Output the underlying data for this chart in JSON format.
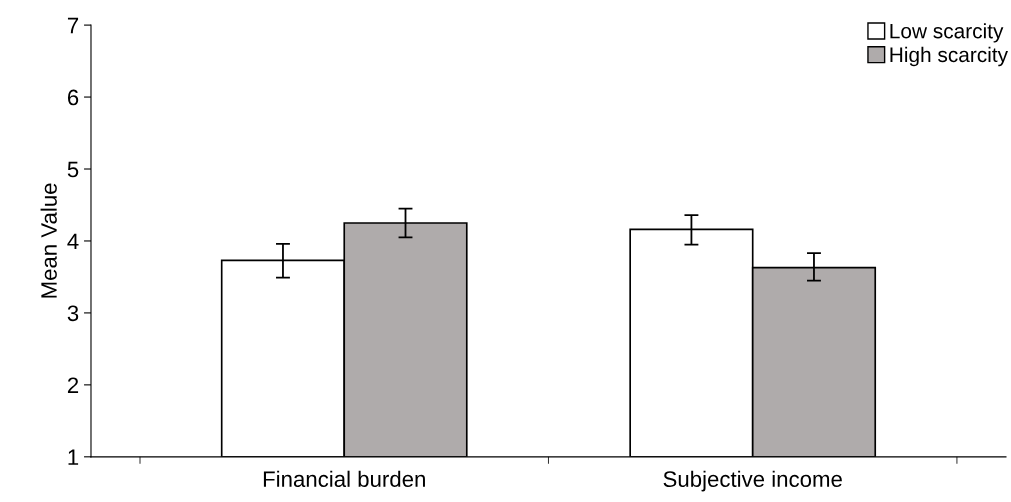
{
  "chart_data": {
    "type": "bar",
    "ylabel": "Mean Value",
    "categories": [
      "Financial burden",
      "Subjective income"
    ],
    "series": [
      {
        "name": "Low scarcity",
        "color": "#ffffff",
        "values": [
          3.73,
          4.16
        ],
        "errors": [
          [
            3.49,
            3.96
          ],
          [
            3.95,
            4.36
          ]
        ]
      },
      {
        "name": "High scarcity",
        "color": "#afabab",
        "values": [
          4.25,
          3.63
        ],
        "errors": [
          [
            4.05,
            4.45
          ],
          [
            3.45,
            3.83
          ]
        ]
      }
    ],
    "ylim": [
      1,
      7
    ],
    "yticks": [
      1,
      2,
      3,
      4,
      5,
      6,
      7
    ],
    "grid": false,
    "legend": "top right"
  }
}
